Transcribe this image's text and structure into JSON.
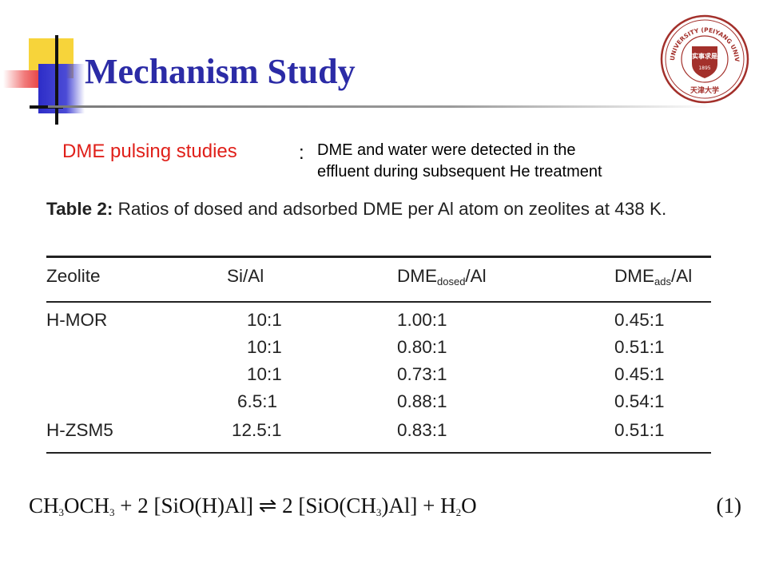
{
  "slide": {
    "title": "Mechanism Study",
    "subtitle": "DME pulsing studies",
    "colon": ":",
    "note_line1": "DME and water were detected in the",
    "note_line2": "effluent during subsequent He treatment"
  },
  "logo": {
    "text": "TIANJIN UNIVERSITY (PEIYANG UNIVERSITY)",
    "year": "1895",
    "chinese_text": "天津大学",
    "seal_text": "实事求是",
    "color": "#a3302b"
  },
  "table": {
    "caption_label": "Table 2:",
    "caption_text": "Ratios of dosed and adsorbed DME per Al atom on zeolites at 438 K.",
    "headers": {
      "zeolite": "Zeolite",
      "sial": "Si/Al",
      "dosed_prefix": "DME",
      "dosed_sub": "dosed",
      "dosed_suffix": "/Al",
      "ads_prefix": "DME",
      "ads_sub": "ads",
      "ads_suffix": "/Al"
    },
    "rows": [
      {
        "zeolite": "H-MOR",
        "sial": "10:1",
        "dosed": "1.00:1",
        "ads": "0.45:1"
      },
      {
        "zeolite": "",
        "sial": "10:1",
        "dosed": "0.80:1",
        "ads": "0.51:1"
      },
      {
        "zeolite": "",
        "sial": "10:1",
        "dosed": "0.73:1",
        "ads": "0.45:1"
      },
      {
        "zeolite": "",
        "sial": "6.5:1",
        "dosed": "0.88:1",
        "ads": "0.54:1"
      },
      {
        "zeolite": "H-ZSM5",
        "sial": "12.5:1",
        "dosed": "0.83:1",
        "ads": "0.51:1"
      }
    ]
  },
  "equation": {
    "p1": "CH",
    "s1": "3",
    "p2": "OCH",
    "s2": "3",
    "p3": " + 2 [SiO(H)Al] ",
    "arrow": "⇌",
    "p4": " 2 [SiO(CH",
    "s3": "3",
    "p5": ")Al] + H",
    "s4": "2",
    "p6": "O",
    "number": "(1)"
  },
  "colors": {
    "title": "#2b2ba6",
    "subtitle": "#e0201a",
    "accent_yellow": "#f7d43a",
    "accent_blue": "#2d2dc8",
    "accent_red": "#e01a1a"
  }
}
